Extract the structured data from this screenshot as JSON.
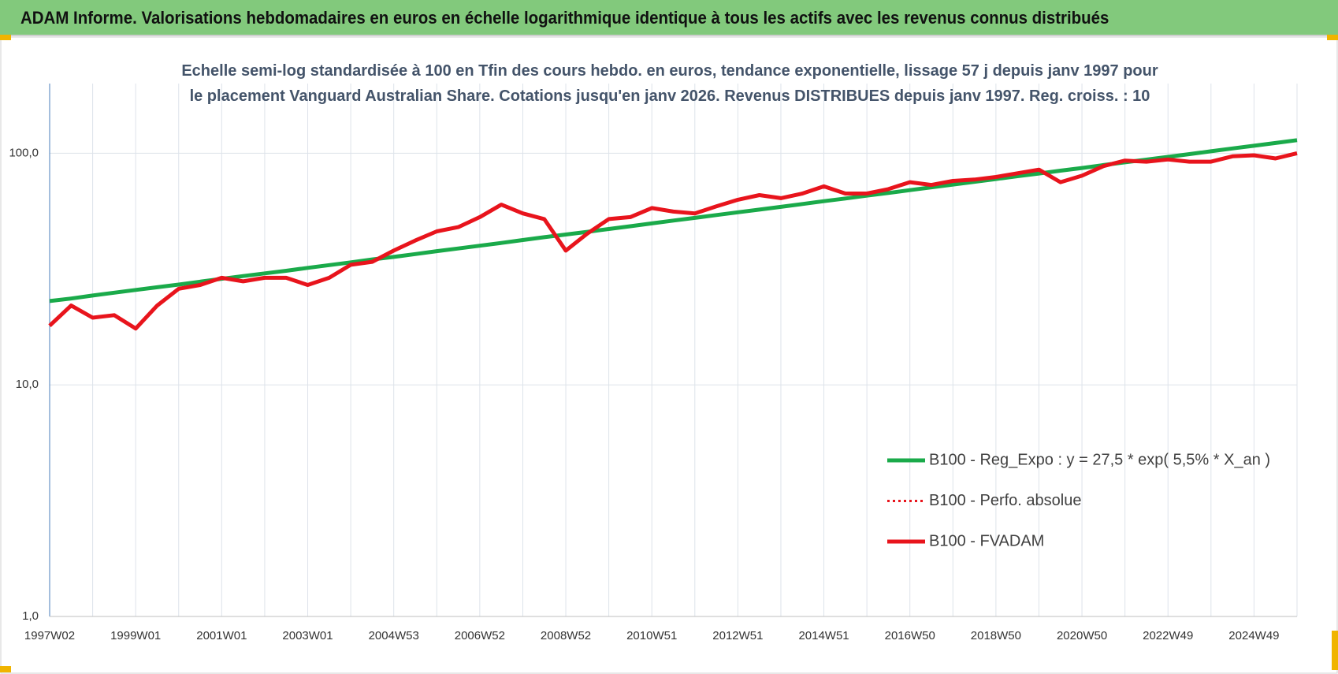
{
  "header": {
    "title": "ADAM Informe. Valorisations hebdomadaires en euros en échelle logarithmique identique à tous les actifs avec les revenus connus distribués"
  },
  "chart_data": {
    "type": "line",
    "title": "Echelle semi-log standardisée à 100 en Tfin des cours hebdo. en euros, tendance exponentielle, lissage 57 j depuis janv 1997 pour le placement Vanguard Australian Share. Cotations jusqu'en janv 2026. Revenus DISTRIBUES depuis janv 1997. Reg. croiss. : 10",
    "categories": [
      "1997W02",
      null,
      null,
      null,
      "1999W01",
      null,
      null,
      null,
      "2001W01",
      null,
      null,
      null,
      "2003W01",
      null,
      null,
      null,
      "2004W53",
      null,
      null,
      null,
      "2006W52",
      null,
      null,
      null,
      "2008W52",
      null,
      null,
      null,
      "2010W51",
      null,
      null,
      null,
      "2012W51",
      null,
      null,
      null,
      "2014W51",
      null,
      null,
      null,
      "2016W50",
      null,
      null,
      null,
      "2018W50",
      null,
      null,
      null,
      "2020W50",
      null,
      null,
      null,
      "2022W49",
      null,
      null,
      null,
      "2024W49",
      null,
      null
    ],
    "log_scale": true,
    "ylim": [
      1,
      200
    ],
    "yticks": [
      {
        "value": 1,
        "label": "1,0"
      },
      {
        "value": 10,
        "label": "10,0"
      },
      {
        "value": 100,
        "label": "100,0"
      }
    ],
    "grid": true,
    "legend": "lower right",
    "series": [
      {
        "name": "B100 - Reg_Expo : y = 27,5 * exp( 5,5% *  X_an )",
        "color": "#1aaa4a",
        "style": "solid",
        "values": [
          23.0,
          23.6,
          24.3,
          25.0,
          25.7,
          26.4,
          27.1,
          27.9,
          28.7,
          29.5,
          30.3,
          31.1,
          32.0,
          32.9,
          33.8,
          34.8,
          35.7,
          36.7,
          37.8,
          38.8,
          39.9,
          41.0,
          42.2,
          43.4,
          44.6,
          45.8,
          47.1,
          48.4,
          49.8,
          51.2,
          52.6,
          54.1,
          55.6,
          57.1,
          58.7,
          60.4,
          62.1,
          63.8,
          65.6,
          67.4,
          69.3,
          71.3,
          73.3,
          75.3,
          77.4,
          79.6,
          81.8,
          84.1,
          86.4,
          88.9,
          91.4,
          93.9,
          96.5,
          99.2,
          102.0,
          104.9,
          107.8,
          110.8,
          113.9
        ]
      },
      {
        "name": "B100 - Perfo. absolue",
        "color": "#e8141c",
        "style": "dotted",
        "values": [
          18,
          22,
          19.5,
          20,
          17.5,
          22,
          26,
          27,
          29,
          28,
          29,
          29,
          27,
          29,
          33,
          34,
          38,
          42,
          46,
          48,
          53,
          60,
          55,
          52,
          38,
          45,
          52,
          53,
          58,
          56,
          55,
          59,
          63,
          66,
          64,
          67,
          72,
          67,
          67,
          70,
          75,
          73,
          76,
          77,
          79,
          82,
          85,
          75,
          80,
          88,
          93,
          92,
          94,
          92,
          92,
          97,
          98,
          95,
          100
        ]
      },
      {
        "name": "B100 - FVADAM",
        "color": "#e8141c",
        "style": "solid",
        "values": [
          18,
          22,
          19.5,
          20,
          17.5,
          22,
          26,
          27,
          29,
          28,
          29,
          29,
          27,
          29,
          33,
          34,
          38,
          42,
          46,
          48,
          53,
          60,
          55,
          52,
          38,
          45,
          52,
          53,
          58,
          56,
          55,
          59,
          63,
          66,
          64,
          67,
          72,
          67,
          67,
          70,
          75,
          73,
          76,
          77,
          79,
          82,
          85,
          75,
          80,
          88,
          93,
          92,
          94,
          92,
          92,
          97,
          98,
          95,
          100
        ]
      }
    ]
  }
}
